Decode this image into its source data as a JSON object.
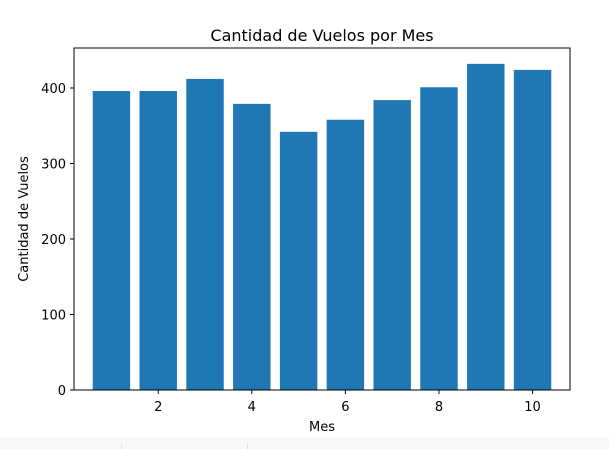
{
  "chart_data": {
    "type": "bar",
    "title": "Cantidad de Vuelos por Mes",
    "xlabel": "Mes",
    "ylabel": "Cantidad de Vuelos",
    "categories": [
      1,
      2,
      3,
      4,
      5,
      6,
      7,
      8,
      9,
      10
    ],
    "values": [
      396,
      396,
      412,
      379,
      342,
      358,
      384,
      401,
      432,
      424
    ],
    "xlim": [
      0.2,
      10.8
    ],
    "ylim": [
      0,
      453
    ],
    "xticks": [
      2,
      4,
      6,
      8,
      10
    ],
    "yticks": [
      0,
      100,
      200,
      300,
      400
    ],
    "grid": false,
    "bar_color": "#1f77b4"
  }
}
